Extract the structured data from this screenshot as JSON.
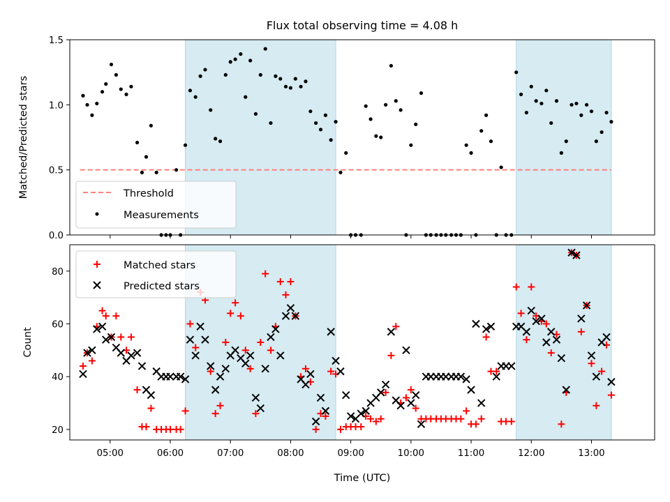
{
  "chart_data": [
    {
      "type": "scatter",
      "title": "Flux total observing time = 4.08 h",
      "xlabel": "",
      "ylabel": "Matched/Predicted stars",
      "ylim": [
        0,
        1.5
      ],
      "yticks": [
        "0.0",
        "0.5",
        "1.0",
        "1.5"
      ],
      "xticks": [
        "05:00",
        "06:00",
        "07:00",
        "08:00",
        "09:00",
        "10:00",
        "11:00",
        "12:00",
        "13:00"
      ],
      "xlim_hours": [
        4.33,
        14.05
      ],
      "shaded_intervals_hours": [
        [
          6.25,
          8.75
        ],
        [
          11.75,
          13.33
        ]
      ],
      "shade_color": "#add8e6",
      "legend_position": "lower-left",
      "threshold": {
        "name": "Threshold",
        "value": 0.5,
        "x_range_hours": [
          4.5,
          13.33
        ],
        "color": "#ff7f7f"
      },
      "series": [
        {
          "name": "Measurements",
          "color": "#000000",
          "x_hours": [
            4.55,
            4.62,
            4.7,
            4.78,
            4.87,
            4.93,
            5.02,
            5.1,
            5.18,
            5.27,
            5.35,
            5.45,
            5.53,
            5.6,
            5.68,
            5.77,
            5.85,
            5.93,
            6.0,
            6.1,
            6.17,
            6.25,
            6.33,
            6.42,
            6.5,
            6.58,
            6.67,
            6.75,
            6.83,
            6.92,
            7.0,
            7.08,
            7.17,
            7.25,
            7.33,
            7.42,
            7.5,
            7.58,
            7.67,
            7.75,
            7.83,
            7.92,
            8.0,
            8.08,
            8.17,
            8.25,
            8.33,
            8.42,
            8.5,
            8.58,
            8.67,
            8.75,
            8.83,
            8.92,
            9.0,
            9.08,
            9.17,
            9.25,
            9.33,
            9.42,
            9.5,
            9.58,
            9.67,
            9.75,
            9.83,
            9.92,
            10.0,
            10.08,
            10.17,
            10.25,
            10.33,
            10.42,
            10.5,
            10.58,
            10.67,
            10.75,
            10.83,
            10.92,
            11.0,
            11.08,
            11.17,
            11.25,
            11.33,
            11.42,
            11.5,
            11.58,
            11.67,
            11.75,
            11.83,
            11.92,
            12.0,
            12.08,
            12.17,
            12.25,
            12.33,
            12.42,
            12.5,
            12.58,
            12.67,
            12.75,
            12.83,
            12.92,
            13.0,
            13.08,
            13.17,
            13.25,
            13.33
          ],
          "y": [
            1.07,
            1.0,
            0.92,
            1.01,
            1.1,
            1.16,
            1.31,
            1.23,
            1.12,
            1.08,
            1.14,
            0.71,
            0.48,
            0.6,
            0.84,
            0.48,
            0.0,
            0.0,
            0.0,
            0.5,
            0.0,
            0.69,
            1.11,
            1.06,
            1.22,
            1.27,
            0.96,
            0.74,
            0.72,
            1.23,
            1.33,
            1.35,
            1.39,
            1.06,
            1.34,
            0.93,
            1.23,
            1.43,
            0.86,
            1.22,
            1.2,
            1.14,
            1.13,
            1.2,
            1.14,
            1.18,
            0.95,
            0.86,
            0.81,
            0.92,
            0.73,
            0.87,
            0.48,
            0.63,
            0.0,
            0.0,
            0.0,
            0.99,
            0.89,
            0.76,
            0.75,
            1.0,
            1.3,
            1.03,
            0.96,
            0.0,
            0.69,
            0.85,
            1.09,
            0.0,
            0.0,
            0.0,
            0.0,
            0.0,
            0.0,
            0.0,
            0.0,
            0.69,
            0.63,
            0.0,
            0.8,
            0.92,
            0.72,
            0.0,
            0.52,
            0.0,
            0.0,
            1.25,
            1.08,
            0.94,
            1.14,
            1.03,
            1.01,
            1.11,
            0.86,
            1.03,
            0.63,
            0.72,
            1.0,
            1.01,
            0.92,
            1.0,
            0.95,
            0.72,
            0.79,
            0.94,
            0.87
          ]
        }
      ]
    },
    {
      "type": "scatter",
      "title": "",
      "xlabel": "Time (UTC)",
      "ylabel": "Count",
      "ylim": [
        16,
        90
      ],
      "yticks": [
        "20",
        "40",
        "60",
        "80"
      ],
      "xticks": [
        "05:00",
        "06:00",
        "07:00",
        "08:00",
        "09:00",
        "10:00",
        "11:00",
        "12:00",
        "13:00"
      ],
      "xlim_hours": [
        4.33,
        14.05
      ],
      "shaded_intervals_hours": [
        [
          6.25,
          8.75
        ],
        [
          11.75,
          13.33
        ]
      ],
      "legend_position": "upper-left",
      "x_hours": [
        4.55,
        4.62,
        4.7,
        4.78,
        4.87,
        4.93,
        5.02,
        5.1,
        5.18,
        5.27,
        5.35,
        5.45,
        5.53,
        5.6,
        5.68,
        5.77,
        5.85,
        5.93,
        6.0,
        6.1,
        6.17,
        6.25,
        6.33,
        6.42,
        6.5,
        6.58,
        6.67,
        6.75,
        6.83,
        6.92,
        7.0,
        7.08,
        7.17,
        7.25,
        7.33,
        7.42,
        7.5,
        7.58,
        7.67,
        7.75,
        7.83,
        7.92,
        8.0,
        8.08,
        8.17,
        8.25,
        8.33,
        8.42,
        8.5,
        8.58,
        8.67,
        8.75,
        8.83,
        8.92,
        9.0,
        9.08,
        9.17,
        9.25,
        9.33,
        9.42,
        9.5,
        9.58,
        9.67,
        9.75,
        9.83,
        9.92,
        10.0,
        10.08,
        10.17,
        10.25,
        10.33,
        10.42,
        10.5,
        10.58,
        10.67,
        10.75,
        10.83,
        10.92,
        11.0,
        11.08,
        11.17,
        11.25,
        11.33,
        11.42,
        11.5,
        11.58,
        11.67,
        11.75,
        11.83,
        11.92,
        12.0,
        12.08,
        12.17,
        12.25,
        12.33,
        12.42,
        12.5,
        12.58,
        12.67,
        12.75,
        12.83,
        12.92,
        13.0,
        13.08,
        13.17,
        13.25,
        13.33
      ],
      "series": [
        {
          "name": "Matched stars",
          "marker": "plus",
          "color": "#ff0000",
          "values": [
            44,
            49,
            46,
            59,
            65,
            63,
            55,
            63,
            55,
            50,
            55,
            35,
            21,
            21,
            28,
            20,
            20,
            20,
            20,
            20,
            20,
            27,
            60,
            51,
            72,
            69,
            42,
            26,
            29,
            53,
            64,
            68,
            63,
            50,
            43,
            26,
            53,
            79,
            50,
            59,
            76,
            71,
            76,
            63,
            40,
            43,
            38,
            20,
            26,
            25,
            42,
            41,
            20,
            21,
            21,
            21,
            21,
            25,
            24,
            23,
            24,
            34,
            48,
            59,
            30,
            32,
            35,
            28,
            24,
            24,
            24,
            24,
            24,
            24,
            24,
            24,
            24,
            27,
            22,
            22,
            24,
            55,
            42,
            42,
            23,
            23,
            23,
            74,
            64,
            54,
            74,
            63,
            61,
            60,
            49,
            56,
            22,
            34,
            87,
            86,
            57,
            67,
            45,
            29,
            42,
            52,
            33
          ]
        },
        {
          "name": "Predicted stars",
          "marker": "x",
          "color": "#000000",
          "values": [
            41,
            49,
            50,
            58,
            59,
            54,
            55,
            51,
            49,
            46,
            48,
            49,
            44,
            35,
            33,
            42,
            40,
            40,
            40,
            40,
            40,
            39,
            54,
            48,
            59,
            54,
            44,
            35,
            40,
            43,
            48,
            50,
            47,
            45,
            48,
            32,
            28,
            43,
            55,
            58,
            48,
            63,
            66,
            63,
            39,
            37,
            41,
            23,
            32,
            27,
            57,
            46,
            42,
            33,
            25,
            24,
            26,
            27,
            30,
            32,
            34,
            37,
            57,
            31,
            29,
            50,
            30,
            33,
            22,
            40,
            40,
            40,
            40,
            40,
            40,
            40,
            40,
            39,
            35,
            60,
            30,
            58,
            59,
            40,
            44,
            44,
            44,
            59,
            59,
            57,
            65,
            61,
            62,
            53,
            57,
            54,
            47,
            35,
            87,
            86,
            62,
            67,
            48,
            40,
            53,
            55,
            38
          ]
        }
      ]
    }
  ]
}
